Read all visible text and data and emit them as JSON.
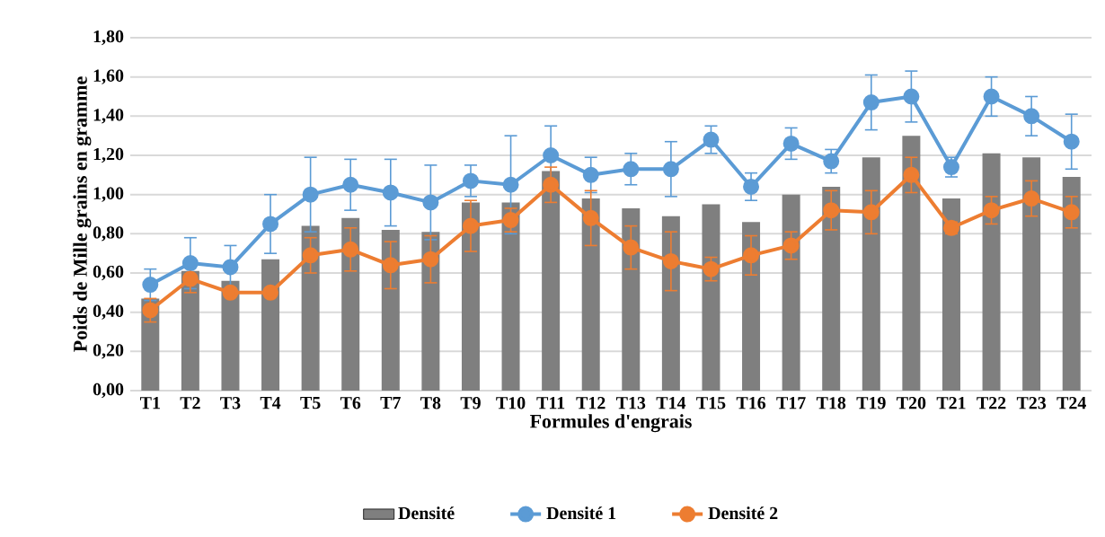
{
  "chart_data": {
    "type": "bar",
    "xlabel": "Formules d'engrais",
    "ylabel": "Poids de Mille grains en gramme",
    "categories": [
      "T1",
      "T2",
      "T3",
      "T4",
      "T5",
      "T6",
      "T7",
      "T8",
      "T9",
      "T10",
      "T11",
      "T12",
      "T13",
      "T14",
      "T15",
      "T16",
      "T17",
      "T18",
      "T19",
      "T20",
      "T21",
      "T22",
      "T23",
      "T24"
    ],
    "series": [
      {
        "name": "Densité",
        "color": "#7f7f7f",
        "values": [
          0.47,
          0.61,
          0.56,
          0.67,
          0.84,
          0.88,
          0.82,
          0.81,
          0.96,
          0.96,
          1.12,
          0.98,
          0.93,
          0.89,
          0.95,
          0.86,
          1.0,
          1.04,
          1.19,
          1.3,
          0.98,
          1.21,
          1.19,
          1.09
        ]
      },
      {
        "name": "Densité 1",
        "type": "line",
        "color": "#5b9bd5",
        "values": [
          0.54,
          0.65,
          0.63,
          0.85,
          1.0,
          1.05,
          1.01,
          0.96,
          1.07,
          1.05,
          1.2,
          1.1,
          1.13,
          1.13,
          1.28,
          1.04,
          1.26,
          1.17,
          1.47,
          1.5,
          1.14,
          1.5,
          1.4,
          1.27
        ],
        "errors": [
          0.08,
          0.13,
          0.11,
          0.15,
          0.19,
          0.13,
          0.17,
          0.19,
          0.08,
          0.25,
          0.15,
          0.09,
          0.08,
          0.14,
          0.07,
          0.07,
          0.08,
          0.06,
          0.14,
          0.13,
          0.05,
          0.1,
          0.1,
          0.14
        ]
      },
      {
        "name": "Densité 2",
        "type": "line",
        "color": "#ed7d31",
        "values": [
          0.41,
          0.57,
          0.5,
          0.5,
          0.69,
          0.72,
          0.64,
          0.67,
          0.84,
          0.87,
          1.05,
          0.88,
          0.73,
          0.66,
          0.62,
          0.69,
          0.74,
          0.92,
          0.91,
          1.1,
          0.83,
          0.92,
          0.98,
          0.91
        ],
        "errors": [
          0.06,
          0.07,
          0.02,
          null,
          0.09,
          0.11,
          0.12,
          0.12,
          0.13,
          0.06,
          0.09,
          0.14,
          0.11,
          0.15,
          0.06,
          0.1,
          0.07,
          0.1,
          0.11,
          0.09,
          0.03,
          0.07,
          0.09,
          0.08
        ]
      }
    ],
    "ylim": [
      0,
      1.8
    ],
    "yticks": [
      {
        "value": 0,
        "label": "0,00"
      },
      {
        "value": 0.2,
        "label": "0,20"
      },
      {
        "value": 0.4,
        "label": "0,40"
      },
      {
        "value": 0.6,
        "label": "0,60"
      },
      {
        "value": 0.8,
        "label": "0,80"
      },
      {
        "value": 1.0,
        "label": "1,00"
      },
      {
        "value": 1.2,
        "label": "1,20"
      },
      {
        "value": 1.4,
        "label": "1,40"
      },
      {
        "value": 1.6,
        "label": "1,60"
      },
      {
        "value": 1.8,
        "label": "1,80"
      }
    ],
    "grid": "y",
    "legend": "bottom",
    "marker": "circle",
    "line_style": "solid"
  }
}
